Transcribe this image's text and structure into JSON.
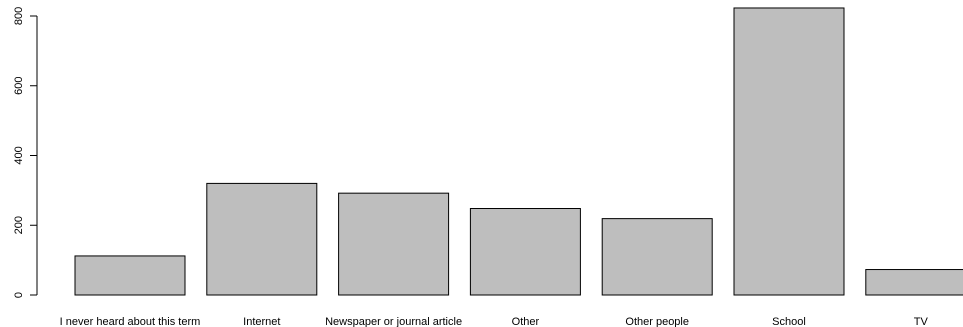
{
  "chart_data": {
    "type": "bar",
    "title": "",
    "xlabel": "",
    "ylabel": "",
    "categories": [
      "I never heard about this term",
      "Internet",
      "Newspaper or journal article",
      "Other",
      "Other people",
      "School",
      "TV"
    ],
    "values": [
      112,
      320,
      292,
      248,
      219,
      823,
      73
    ],
    "ylim": [
      0,
      800
    ],
    "yticks": [
      0,
      200,
      400,
      600,
      800
    ],
    "grid": false,
    "legend": "none",
    "colors": {
      "bar_fill": "#bebebe",
      "bar_stroke": "#000000"
    }
  }
}
